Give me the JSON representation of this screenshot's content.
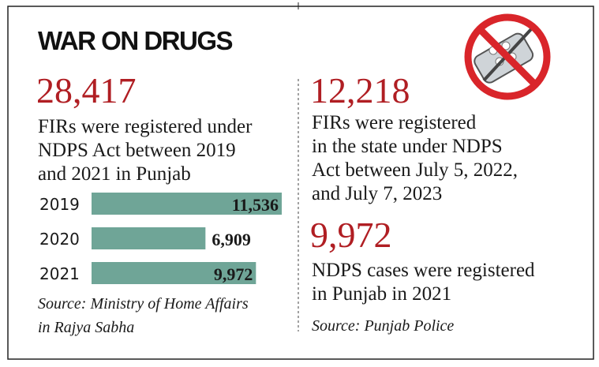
{
  "title": "WAR ON DRUGS",
  "left": {
    "stat": "28,417",
    "lines": [
      "FIRs were registered under",
      "NDPS Act between 2019",
      "and 2021 in Punjab"
    ],
    "source": [
      "Source: Ministry of Home Affairs",
      "in Rajya Sabha"
    ]
  },
  "chart_data": {
    "type": "bar",
    "orientation": "horizontal",
    "categories": [
      "2019",
      "2020",
      "2021"
    ],
    "values": [
      11536,
      6909,
      9972
    ],
    "value_labels": [
      "11,536",
      "6,909",
      "9,972"
    ],
    "color": "#6fa597"
  },
  "right": {
    "stat": "12,218",
    "lines": [
      "FIRs were registered",
      "in the state under NDPS",
      "Act between July 5, 2022,",
      "and July 7, 2023"
    ],
    "stat2": "9,972",
    "lines2": [
      "NDPS cases were registered",
      "in Punjab in 2021"
    ],
    "source": "Source: Punjab Police"
  }
}
